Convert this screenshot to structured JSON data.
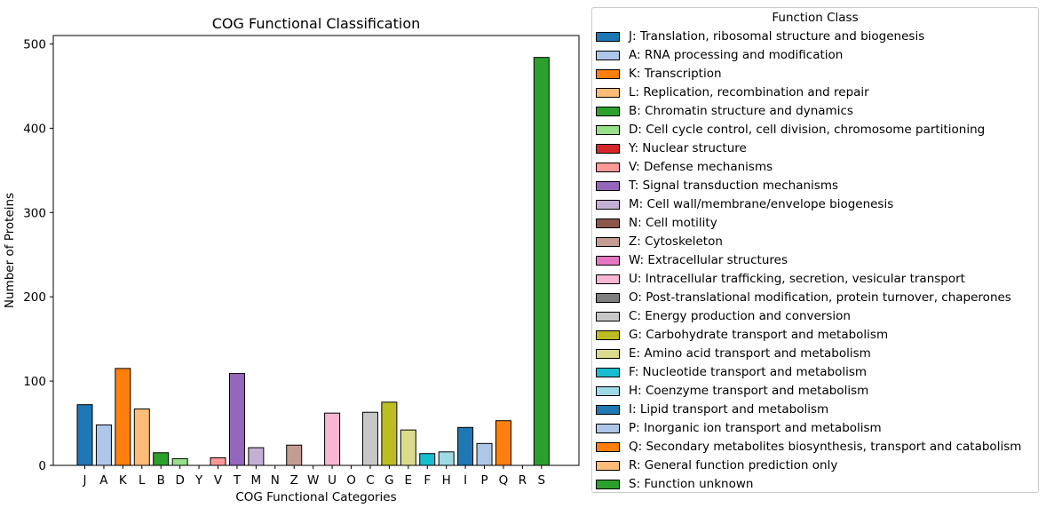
{
  "chart_data": {
    "type": "bar",
    "title": "COG Functional Classification",
    "xlabel": "COG Functional Categories",
    "ylabel": "Number of Proteins",
    "ylim": [
      0,
      510
    ],
    "yticks": [
      0,
      100,
      200,
      300,
      400,
      500
    ],
    "categories": [
      "J",
      "A",
      "K",
      "L",
      "B",
      "D",
      "Y",
      "V",
      "T",
      "M",
      "N",
      "Z",
      "W",
      "U",
      "O",
      "C",
      "G",
      "E",
      "F",
      "H",
      "I",
      "P",
      "Q",
      "R",
      "S"
    ],
    "values": [
      72,
      48,
      115,
      67,
      15,
      8,
      0,
      9,
      109,
      21,
      0,
      24,
      0,
      62,
      0,
      63,
      75,
      42,
      14,
      16,
      45,
      26,
      53,
      0,
      484
    ],
    "colors": [
      "#1f77b4",
      "#aec7e8",
      "#ff7f0e",
      "#ffbb78",
      "#2ca02c",
      "#98df8a",
      "#d62728",
      "#ff9896",
      "#9467bd",
      "#c5b0d5",
      "#8c564b",
      "#c49c94",
      "#e377c2",
      "#f7b6d2",
      "#7f7f7f",
      "#c7c7c7",
      "#bcbd22",
      "#dbdb8d",
      "#17becf",
      "#9edae5",
      "#1f77b4",
      "#aec7e8",
      "#ff7f0e",
      "#ffbb78",
      "#2ca02c"
    ],
    "grid": false,
    "legend": {
      "title": "Function Class",
      "placement": "right",
      "entries": [
        "J: Translation, ribosomal structure and biogenesis",
        "A: RNA processing and modification",
        "K: Transcription",
        "L: Replication, recombination and repair",
        "B: Chromatin structure and dynamics",
        "D: Cell cycle control, cell division, chromosome partitioning",
        "Y: Nuclear structure",
        "V: Defense mechanisms",
        "T: Signal transduction mechanisms",
        "M: Cell wall/membrane/envelope biogenesis",
        "N: Cell motility",
        "Z: Cytoskeleton",
        "W: Extracellular structures",
        "U: Intracellular trafficking, secretion, vesicular transport",
        "O: Post-translational modification, protein turnover, chaperones",
        "C: Energy production and conversion",
        "G: Carbohydrate transport and metabolism",
        "E: Amino acid transport and metabolism",
        "F: Nucleotide transport and metabolism",
        "H: Coenzyme transport and metabolism",
        "I: Lipid transport and metabolism",
        "P: Inorganic ion transport and metabolism",
        "Q: Secondary metabolites biosynthesis, transport and catabolism",
        "R: General function prediction only",
        "S: Function unknown"
      ]
    }
  }
}
